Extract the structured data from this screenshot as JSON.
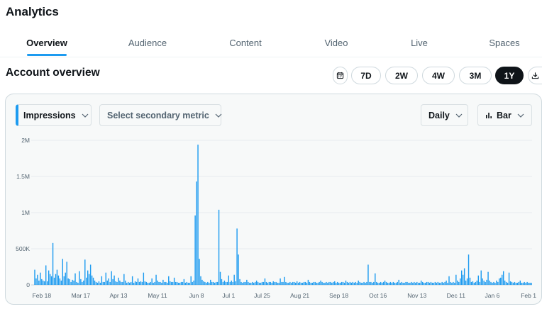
{
  "app": {
    "title": "Analytics"
  },
  "tabs": [
    {
      "label": "Overview",
      "active": true
    },
    {
      "label": "Audience",
      "active": false
    },
    {
      "label": "Content",
      "active": false
    },
    {
      "label": "Video",
      "active": false
    },
    {
      "label": "Live",
      "active": false
    },
    {
      "label": "Spaces",
      "active": false
    }
  ],
  "overview": {
    "title": "Account overview",
    "ranges": [
      {
        "label": "7D",
        "active": false
      },
      {
        "label": "2W",
        "active": false
      },
      {
        "label": "4W",
        "active": false
      },
      {
        "label": "3M",
        "active": false
      },
      {
        "label": "1Y",
        "active": true
      }
    ],
    "icons": {
      "calendar": "calendar-icon",
      "download": "download-icon"
    }
  },
  "controls": {
    "primary_metric": "Impressions",
    "secondary_metric": "Select secondary metric",
    "granularity": "Daily",
    "chart_type": "Bar"
  },
  "colors": {
    "accent": "#1d9bf0",
    "bar": "#1d9bf0",
    "panel_bg": "#f7f9f9"
  },
  "chart_data": {
    "type": "bar",
    "ylim": [
      0,
      2000000
    ],
    "y_ticks": [
      {
        "value": 0,
        "label": "0"
      },
      {
        "value": 500000,
        "label": "500K"
      },
      {
        "value": 1000000,
        "label": "1M"
      },
      {
        "value": 1500000,
        "label": "1.5M"
      },
      {
        "value": 2000000,
        "label": "2M"
      }
    ],
    "x_ticks": [
      {
        "date": "2024-02-18",
        "label": "Feb 18"
      },
      {
        "date": "2024-03-17",
        "label": "Mar 17"
      },
      {
        "date": "2024-04-13",
        "label": "Apr 13"
      },
      {
        "date": "2024-05-11",
        "label": "May 11"
      },
      {
        "date": "2024-06-08",
        "label": "Jun 8"
      },
      {
        "date": "2024-07-01",
        "label": "Jul 1"
      },
      {
        "date": "2024-07-25",
        "label": "Jul 25"
      },
      {
        "date": "2024-08-21",
        "label": "Aug 21"
      },
      {
        "date": "2024-09-18",
        "label": "Sep 18"
      },
      {
        "date": "2024-10-16",
        "label": "Oct 16"
      },
      {
        "date": "2024-11-13",
        "label": "Nov 13"
      },
      {
        "date": "2024-12-11",
        "label": "Dec 11"
      },
      {
        "date": "2025-01-06",
        "label": "Jan 6"
      },
      {
        "date": "2025-02-01",
        "label": "Feb 1"
      }
    ],
    "start_date": "2024-02-13",
    "values": [
      210000,
      90000,
      140000,
      60000,
      170000,
      80000,
      60000,
      50000,
      270000,
      50000,
      200000,
      150000,
      120000,
      580000,
      100000,
      150000,
      210000,
      130000,
      90000,
      60000,
      360000,
      120000,
      170000,
      320000,
      90000,
      80000,
      40000,
      70000,
      60000,
      160000,
      40000,
      30000,
      190000,
      80000,
      40000,
      60000,
      350000,
      100000,
      200000,
      150000,
      280000,
      130000,
      100000,
      60000,
      40000,
      30000,
      50000,
      30000,
      120000,
      40000,
      40000,
      170000,
      60000,
      90000,
      40000,
      190000,
      80000,
      130000,
      50000,
      40000,
      100000,
      60000,
      40000,
      40000,
      150000,
      60000,
      30000,
      40000,
      30000,
      40000,
      120000,
      30000,
      50000,
      40000,
      90000,
      40000,
      50000,
      40000,
      170000,
      50000,
      40000,
      30000,
      30000,
      40000,
      90000,
      30000,
      40000,
      140000,
      60000,
      40000,
      40000,
      30000,
      70000,
      40000,
      40000,
      30000,
      120000,
      50000,
      40000,
      40000,
      100000,
      40000,
      40000,
      30000,
      30000,
      40000,
      40000,
      80000,
      30000,
      40000,
      30000,
      30000,
      120000,
      40000,
      60000,
      960000,
      1430000,
      1940000,
      360000,
      120000,
      70000,
      50000,
      40000,
      30000,
      40000,
      30000,
      70000,
      40000,
      40000,
      30000,
      40000,
      40000,
      1040000,
      180000,
      80000,
      40000,
      60000,
      40000,
      40000,
      130000,
      40000,
      60000,
      40000,
      140000,
      50000,
      780000,
      420000,
      80000,
      40000,
      30000,
      40000,
      40000,
      70000,
      40000,
      30000,
      30000,
      40000,
      30000,
      40000,
      60000,
      40000,
      30000,
      30000,
      40000,
      40000,
      90000,
      40000,
      30000,
      40000,
      40000,
      30000,
      50000,
      40000,
      40000,
      30000,
      30000,
      90000,
      40000,
      40000,
      110000,
      40000,
      30000,
      30000,
      40000,
      30000,
      40000,
      40000,
      30000,
      50000,
      30000,
      40000,
      30000,
      30000,
      40000,
      40000,
      30000,
      70000,
      40000,
      30000,
      30000,
      40000,
      40000,
      30000,
      30000,
      40000,
      60000,
      40000,
      30000,
      30000,
      40000,
      30000,
      40000,
      40000,
      30000,
      40000,
      50000,
      30000,
      40000,
      30000,
      30000,
      40000,
      40000,
      30000,
      60000,
      40000,
      30000,
      40000,
      30000,
      40000,
      30000,
      40000,
      30000,
      60000,
      40000,
      30000,
      30000,
      40000,
      30000,
      40000,
      280000,
      40000,
      40000,
      30000,
      40000,
      160000,
      40000,
      30000,
      30000,
      40000,
      30000,
      40000,
      60000,
      40000,
      30000,
      30000,
      40000,
      30000,
      40000,
      30000,
      30000,
      40000,
      70000,
      30000,
      40000,
      30000,
      30000,
      40000,
      40000,
      30000,
      30000,
      40000,
      30000,
      40000,
      30000,
      40000,
      30000,
      30000,
      60000,
      40000,
      30000,
      30000,
      40000,
      40000,
      30000,
      40000,
      30000,
      30000,
      40000,
      30000,
      40000,
      30000,
      30000,
      40000,
      30000,
      40000,
      60000,
      30000,
      120000,
      40000,
      30000,
      40000,
      30000,
      140000,
      60000,
      40000,
      90000,
      200000,
      140000,
      230000,
      60000,
      90000,
      420000,
      100000,
      40000,
      50000,
      30000,
      40000,
      60000,
      130000,
      40000,
      200000,
      90000,
      60000,
      40000,
      70000,
      180000,
      60000,
      40000,
      30000,
      40000,
      30000,
      60000,
      40000,
      90000,
      100000,
      140000,
      190000,
      60000,
      40000,
      30000,
      170000,
      50000,
      40000,
      30000,
      40000,
      30000,
      30000,
      40000,
      60000,
      30000,
      30000,
      40000,
      30000,
      40000,
      30000,
      30000,
      30000
    ]
  }
}
